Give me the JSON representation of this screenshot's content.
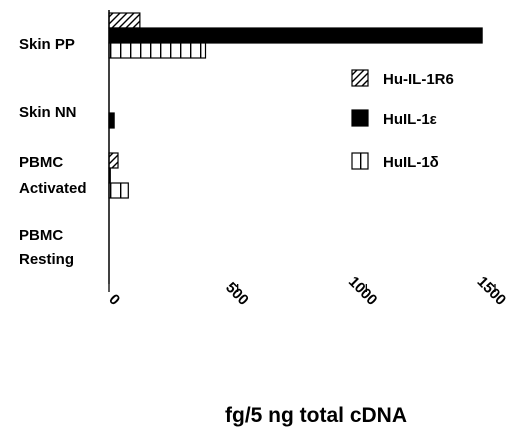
{
  "chart_data": {
    "type": "bar",
    "orientation": "horizontal",
    "categories": [
      "Skin PP",
      "Skin NN",
      "PBMC Activated",
      "PBMC Resting"
    ],
    "category_label_lines": [
      [
        "Skin PP"
      ],
      [
        "Skin NN"
      ],
      [
        "PBMC",
        "Activated"
      ],
      [
        "PBMC",
        "Resting"
      ]
    ],
    "series": [
      {
        "name": "Hu-IL-1R6",
        "values": [
          120,
          0,
          35,
          0
        ],
        "fill": "diagonal-hatch"
      },
      {
        "name": "HuIL-1ε",
        "values": [
          1450,
          20,
          5,
          0
        ],
        "fill": "solid"
      },
      {
        "name": "HuIL-1δ",
        "values": [
          375,
          0,
          75,
          0
        ],
        "fill": "vertical-hatch"
      }
    ],
    "xlim": [
      0,
      1500
    ],
    "xticks": [
      "0",
      "500",
      "1000",
      "1500"
    ],
    "xtick_values": [
      0,
      500,
      1000,
      1500
    ],
    "xlabel": "fg/5 ng total cDNA",
    "ylabel": "",
    "title": "",
    "legend_position": "right",
    "grid": false,
    "colors": {
      "bar_fill": "#000000",
      "background": "#ffffff"
    }
  }
}
